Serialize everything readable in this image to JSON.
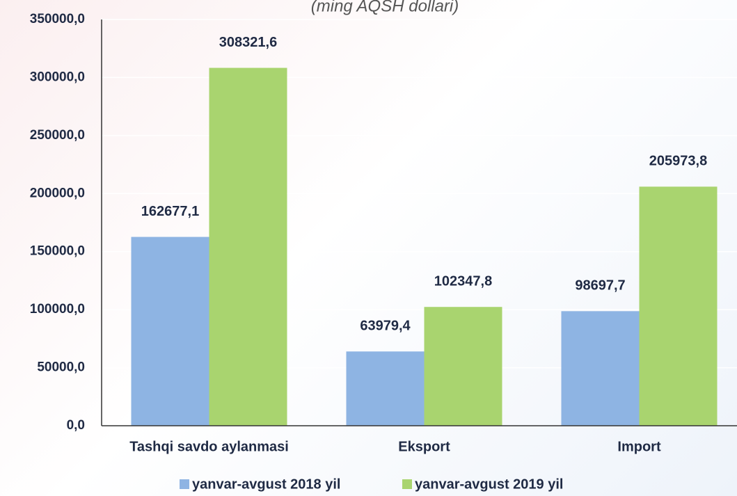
{
  "chart_data": {
    "type": "bar",
    "subtitle": "(ming AQSH dollari)",
    "categories": [
      "Tashqi savdo aylanmasi",
      "Eksport",
      "Import"
    ],
    "series": [
      {
        "name": "yanvar-avgust 2018 yil",
        "color": "#8eb4e3",
        "values": [
          162677.1,
          63979.4,
          98697.7
        ],
        "value_labels": [
          "162677,1",
          "63979,4",
          "98697,7"
        ]
      },
      {
        "name": "yanvar-avgust 2019 yil",
        "color": "#a9d46f",
        "values": [
          308321.6,
          102347.8,
          205973.8
        ],
        "value_labels": [
          "308321,6",
          "102347,8",
          "205973,8"
        ]
      }
    ],
    "ylim": [
      0,
      350000
    ],
    "yticks": [
      {
        "value": 0,
        "label": "0,0"
      },
      {
        "value": 50000,
        "label": "50000,0"
      },
      {
        "value": 100000,
        "label": "100000,0"
      },
      {
        "value": 150000,
        "label": "150000,0"
      },
      {
        "value": 200000,
        "label": "200000,0"
      },
      {
        "value": 250000,
        "label": "250000,0"
      },
      {
        "value": 300000,
        "label": "300000,0"
      },
      {
        "value": 350000,
        "label": "350000,0"
      }
    ],
    "grid": true,
    "legend": "bottom"
  }
}
